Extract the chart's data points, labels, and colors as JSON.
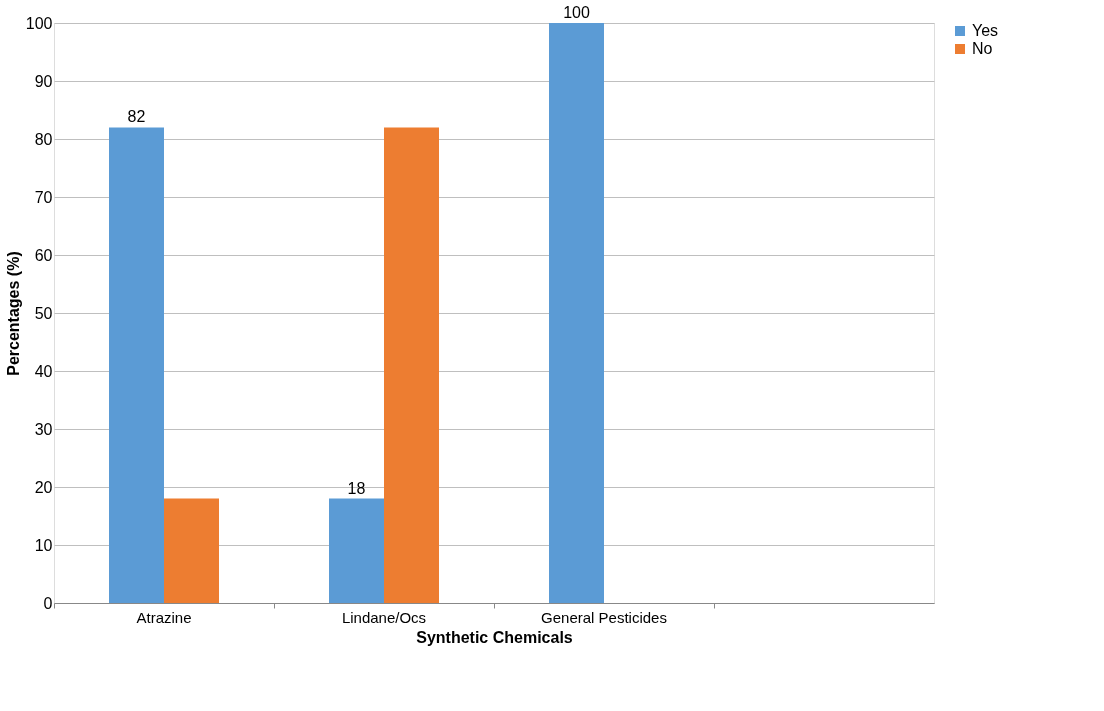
{
  "chart_data": {
    "type": "bar",
    "xlabel": "Synthetic Chemicals",
    "ylabel": "Percentages (%)",
    "categories": [
      "Atrazine",
      "Lindane/Ocs",
      "General Pesticides",
      null
    ],
    "series": [
      {
        "name": "Yes",
        "color": "#5b9bd5",
        "values": [
          82,
          18,
          100,
          null
        ],
        "value_labels": [
          "82",
          "18",
          "100",
          null
        ]
      },
      {
        "name": "No",
        "color": "#ed7d31",
        "values": [
          18,
          82,
          0,
          null
        ]
      }
    ],
    "ylim": [
      0,
      100
    ],
    "yticks": [
      0,
      10,
      20,
      30,
      40,
      50,
      60,
      70,
      80,
      90,
      100
    ],
    "grid": "y",
    "legend": "right"
  }
}
